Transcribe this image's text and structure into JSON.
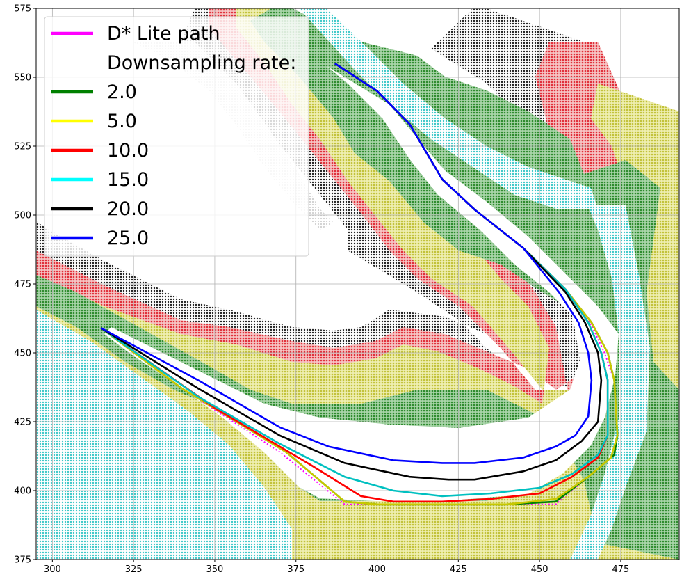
{
  "chart_data": {
    "type": "line",
    "title": "",
    "xlabel": "",
    "ylabel": "",
    "xlim": [
      295,
      493
    ],
    "ylim": [
      375,
      575
    ],
    "x_ticks": [
      300,
      325,
      350,
      375,
      400,
      425,
      450,
      475
    ],
    "y_ticks": [
      375,
      400,
      425,
      450,
      475,
      500,
      525,
      550,
      575
    ],
    "grid": true,
    "legend_placement": "top-left",
    "legend": {
      "title_entry": "Downsampling rate:",
      "entries": [
        {
          "label": "D* Lite path",
          "color": "#ff00ff"
        },
        {
          "label": "Downsampling rate:",
          "color": null
        },
        {
          "label": "2.0",
          "color": "#008000"
        },
        {
          "label": "5.0",
          "color": "#ffff00"
        },
        {
          "label": "10.0",
          "color": "#ff0000"
        },
        {
          "label": "15.0",
          "color": "#00ffff"
        },
        {
          "label": "20.0",
          "color": "#000000"
        },
        {
          "label": "25.0",
          "color": "#0000ff"
        }
      ]
    },
    "background_cost_bands": {
      "note_colors": [
        "#222222",
        "#e0303a",
        "#c8c83a",
        "#2e8b2e",
        "#3ec8c8",
        "#d8d8d8"
      ]
    },
    "series": [
      {
        "name": "D* Lite path",
        "color": "#ff00ff",
        "x": [
          387,
          400,
          410,
          420,
          430,
          445,
          458,
          466,
          470,
          473,
          474,
          473,
          465,
          455,
          440,
          420,
          400,
          390,
          370,
          340,
          315
        ],
        "y": [
          555,
          545,
          533,
          513,
          502,
          488,
          473,
          460,
          450,
          440,
          420,
          413,
          405,
          395,
          395,
          395,
          395,
          395,
          414,
          437,
          459
        ]
      },
      {
        "name": "2.0",
        "color": "#008000",
        "x": [
          387,
          400,
          410,
          420,
          430,
          445,
          458,
          466,
          471,
          473,
          474,
          473,
          465,
          455,
          440,
          420,
          400,
          390,
          372,
          340,
          315
        ],
        "y": [
          555,
          545,
          533,
          513,
          502,
          488,
          473,
          461,
          450,
          440,
          420,
          413,
          405,
          396,
          395,
          395,
          395,
          396,
          414,
          437,
          459
        ]
      },
      {
        "name": "5.0",
        "color": "#c8c800",
        "x": [
          387,
          400,
          410,
          420,
          430,
          445,
          458,
          466,
          471,
          473,
          474,
          472,
          465,
          455,
          440,
          420,
          400,
          390,
          372,
          340,
          315
        ],
        "y": [
          555,
          545,
          533,
          513,
          502,
          488,
          473,
          461,
          450,
          440,
          420,
          412,
          405,
          397,
          395,
          395,
          395,
          396,
          414,
          437,
          459
        ]
      },
      {
        "name": "10.0",
        "color": "#ff0000",
        "x": [
          387,
          400,
          410,
          420,
          430,
          445,
          458,
          465,
          469,
          471,
          471,
          468,
          460,
          450,
          435,
          420,
          405,
          395,
          380,
          350,
          315
        ],
        "y": [
          555,
          545,
          533,
          513,
          502,
          488,
          473,
          461,
          450,
          440,
          420,
          412,
          405,
          399,
          397,
          396,
          396,
          398,
          409,
          430,
          459
        ]
      },
      {
        "name": "15.0",
        "color": "#00c0c0",
        "x": [
          387,
          400,
          410,
          420,
          430,
          445,
          458,
          465,
          469,
          471,
          471,
          468,
          460,
          450,
          435,
          420,
          405,
          390,
          370,
          345,
          315
        ],
        "y": [
          555,
          545,
          533,
          513,
          502,
          488,
          473,
          461,
          450,
          440,
          420,
          413,
          406,
          401,
          399,
          398,
          400,
          405,
          417,
          434,
          459
        ]
      },
      {
        "name": "20.0",
        "color": "#000000",
        "x": [
          387,
          400,
          410,
          420,
          430,
          445,
          458,
          464,
          468,
          469,
          468,
          463,
          455,
          445,
          430,
          422,
          410,
          390,
          370,
          345,
          315
        ],
        "y": [
          555,
          545,
          533,
          513,
          502,
          488,
          472,
          461,
          450,
          440,
          425,
          418,
          411,
          407,
          404,
          404,
          405,
          410,
          420,
          437,
          459
        ]
      },
      {
        "name": "25.0",
        "color": "#0000ff",
        "x": [
          387,
          400,
          410,
          420,
          430,
          445,
          456,
          462,
          465,
          466,
          465,
          461,
          455,
          445,
          430,
          420,
          405,
          385,
          370,
          345,
          315
        ],
        "y": [
          555,
          545,
          533,
          513,
          502,
          488,
          472,
          461,
          450,
          440,
          427,
          420,
          416,
          412,
          410,
          410,
          411,
          416,
          423,
          440,
          459
        ]
      }
    ]
  }
}
